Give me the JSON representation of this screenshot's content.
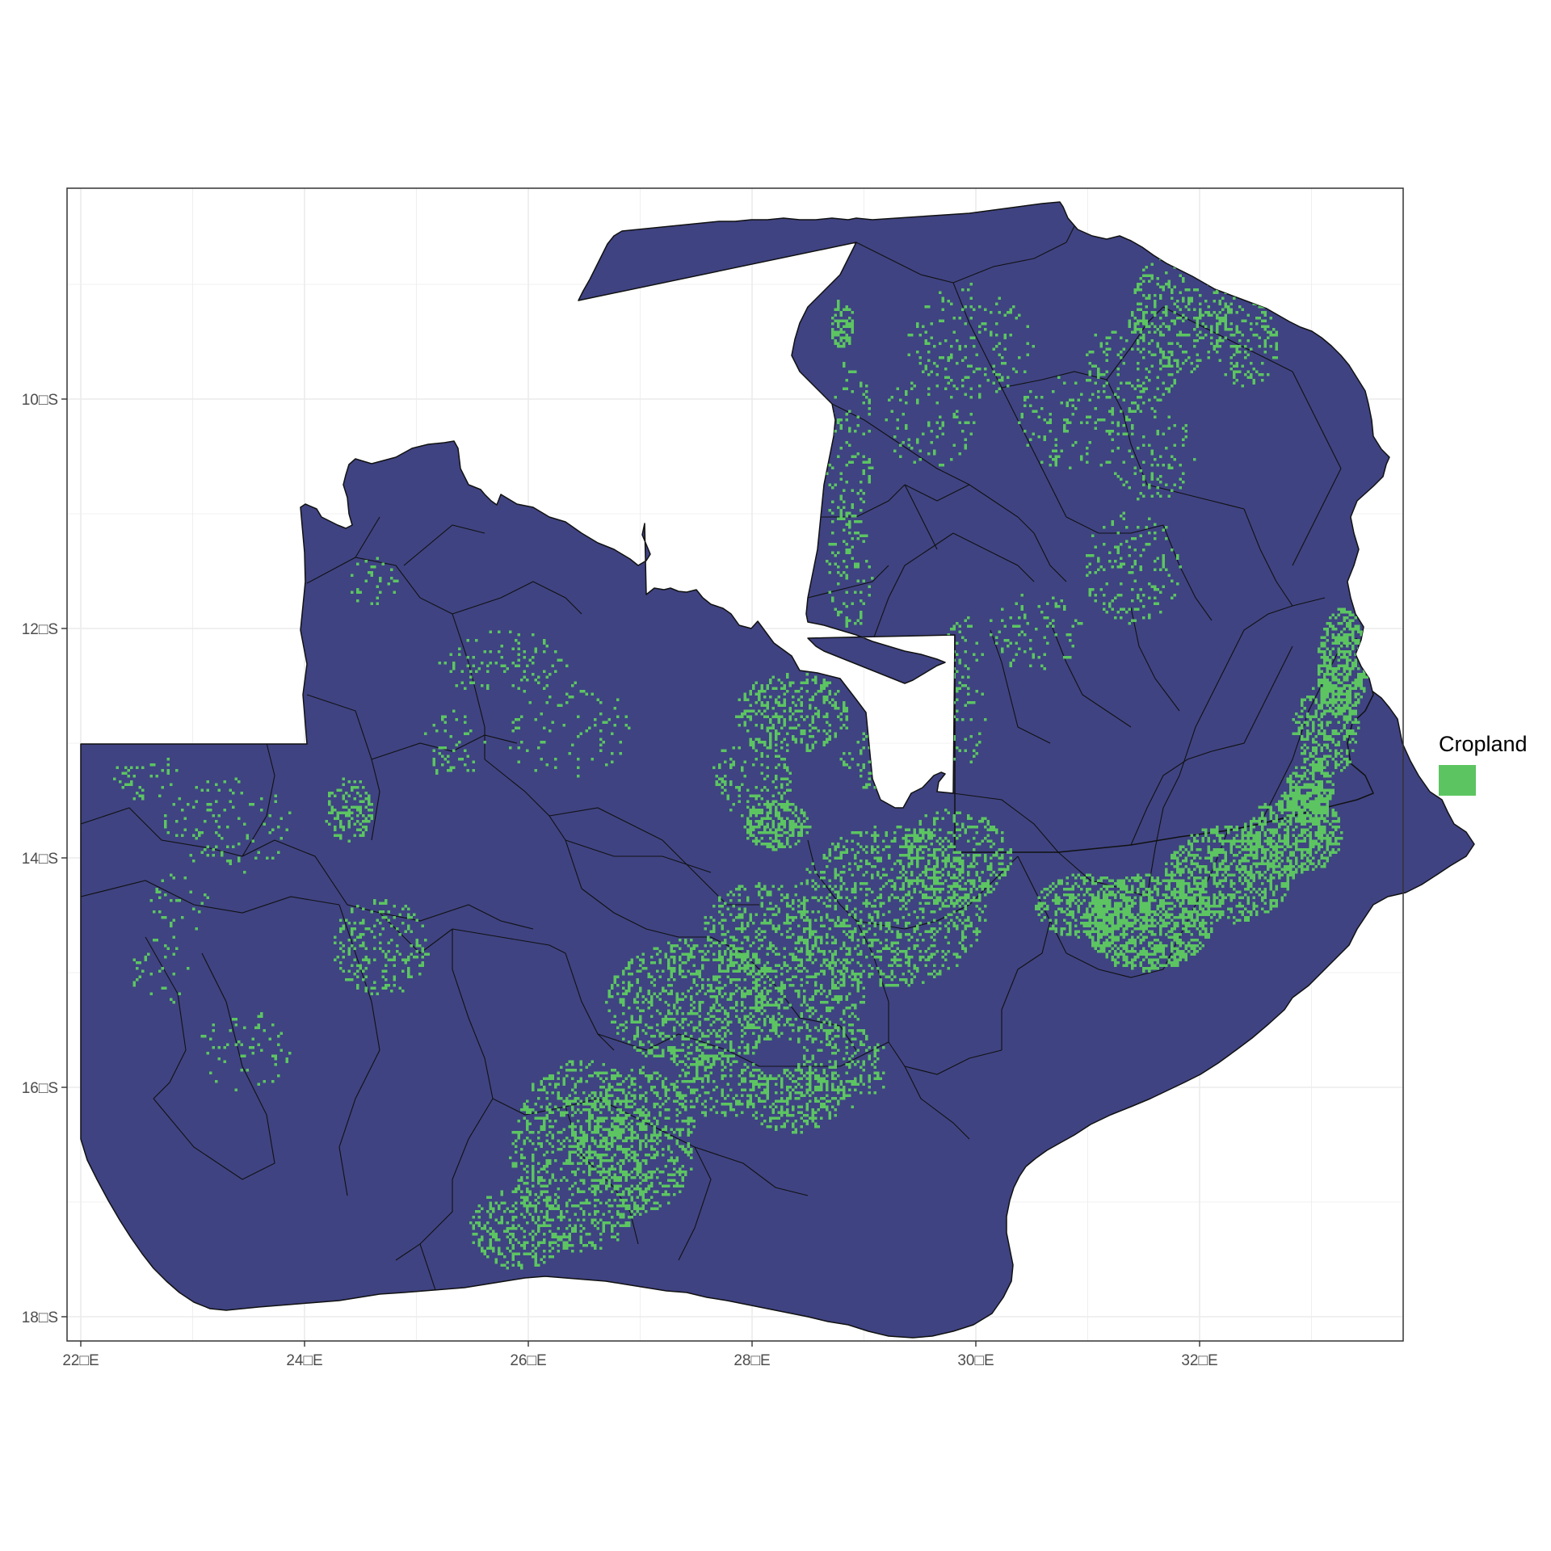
{
  "map": {
    "x_ticks": [
      "22□E",
      "24□E",
      "26□E",
      "28□E",
      "30□E",
      "32□E"
    ],
    "y_ticks": [
      "10□S",
      "12□S",
      "14□S",
      "16□S",
      "18□S"
    ],
    "x_range": [
      21.9,
      33.7
    ],
    "y_range": [
      -18.2,
      -8.2
    ],
    "grid": true,
    "colors": {
      "land": "#3f4382",
      "cropland": "#5cc561",
      "border": "#000000",
      "grid": "#ebebeb",
      "panel_border": "#333333",
      "background": "#ffffff"
    }
  },
  "legend": {
    "title": "Cropland",
    "swatch_color": "#5cc561",
    "position": "right"
  }
}
